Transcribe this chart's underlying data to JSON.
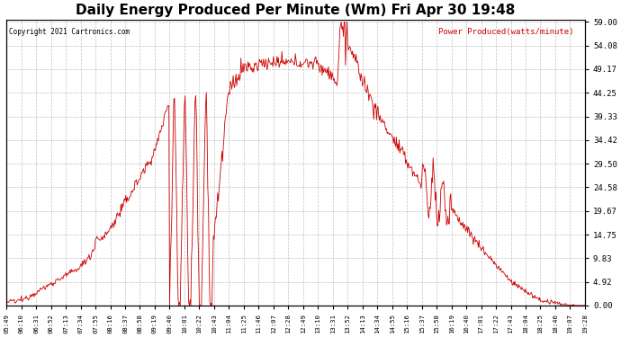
{
  "title": "Daily Energy Produced Per Minute (Wm) Fri Apr 30 19:48",
  "copyright": "Copyright 2021 Cartronics.com",
  "legend_label": "Power Produced(watts/minute)",
  "background_color": "#ffffff",
  "plot_bg_color": "#ffffff",
  "line_color": "#cc0000",
  "grid_color": "#b0b0b0",
  "title_fontsize": 11,
  "ymin": 0.0,
  "ymax": 59.0,
  "yticks": [
    0.0,
    4.92,
    9.83,
    14.75,
    19.67,
    24.58,
    29.5,
    34.42,
    39.33,
    44.25,
    49.17,
    54.08,
    59.0
  ],
  "ytick_labels": [
    "0.00",
    "4.92",
    "9.83",
    "14.75",
    "19.67",
    "24.58",
    "29.50",
    "34.42",
    "39.33",
    "44.25",
    "49.17",
    "54.08",
    "59.00"
  ],
  "xtick_labels": [
    "05:49",
    "06:10",
    "06:31",
    "06:52",
    "07:13",
    "07:34",
    "07:55",
    "08:16",
    "08:37",
    "08:58",
    "09:19",
    "09:40",
    "10:01",
    "10:22",
    "10:43",
    "11:04",
    "11:25",
    "11:46",
    "12:07",
    "12:28",
    "12:49",
    "13:10",
    "13:31",
    "13:52",
    "14:13",
    "14:34",
    "14:55",
    "15:16",
    "15:37",
    "15:58",
    "16:19",
    "16:40",
    "17:01",
    "17:22",
    "17:43",
    "18:04",
    "18:25",
    "18:46",
    "19:07",
    "19:28"
  ]
}
